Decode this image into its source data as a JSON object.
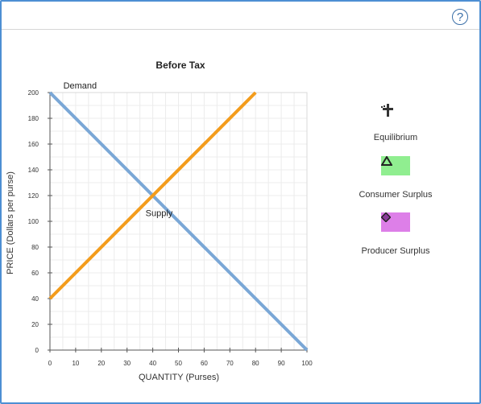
{
  "help": {
    "icon": "help-icon",
    "glyph": "?"
  },
  "chart_data": {
    "type": "line",
    "title": "Before Tax",
    "xlabel": "QUANTITY (Purses)",
    "ylabel": "PRICE (Dollars per purse)",
    "xlim": [
      0,
      100
    ],
    "ylim": [
      0,
      200
    ],
    "xticks": [
      0,
      10,
      20,
      30,
      40,
      50,
      60,
      70,
      80,
      90,
      100
    ],
    "yticks": [
      0,
      20,
      40,
      60,
      80,
      100,
      120,
      140,
      160,
      180,
      200
    ],
    "grid": true,
    "series": [
      {
        "name": "Demand",
        "color": "#7aa7d6",
        "points": [
          [
            0,
            200
          ],
          [
            100,
            0
          ]
        ]
      },
      {
        "name": "Supply",
        "color": "#f39c1c",
        "points": [
          [
            0,
            40
          ],
          [
            80,
            200
          ]
        ]
      }
    ],
    "annotations": [
      {
        "text": "Demand",
        "x": 3,
        "y": 203
      },
      {
        "text": "Supply",
        "x": 35,
        "y": 104
      }
    ]
  },
  "legend": [
    {
      "label": "Equilibrium",
      "icon": "plus-cross-icon",
      "color": "#333333"
    },
    {
      "label": "Consumer Surplus",
      "icon": "triangle-icon",
      "color": "#90ee90"
    },
    {
      "label": "Producer Surplus",
      "icon": "diamond-icon",
      "color": "#dd7fe8"
    }
  ]
}
